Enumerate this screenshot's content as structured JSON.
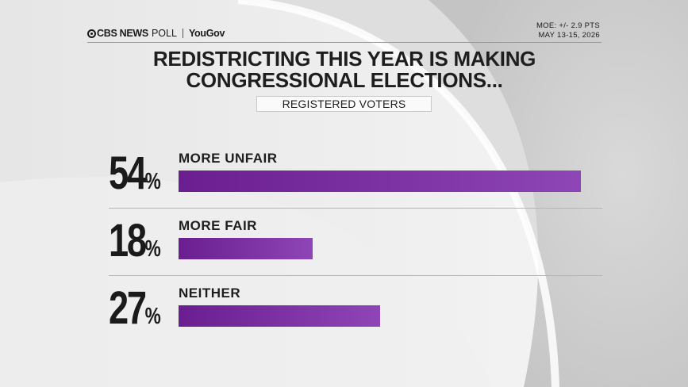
{
  "header": {
    "brand": "CBS NEWS",
    "poll": "POLL",
    "partner": "YouGov",
    "moe": "MOE: +/- 2.9 PTS",
    "dates": "MAY 13-15, 2026"
  },
  "title_line1": "REDISTRICTING THIS YEAR IS MAKING",
  "title_line2": "CONGRESSIONAL ELECTIONS...",
  "subtitle": "REGISTERED VOTERS",
  "colors": {
    "bar_start": "#6a1e90",
    "bar_end": "#8e45b6",
    "text": "#1e1e1e"
  },
  "chart_data": {
    "type": "bar",
    "orientation": "horizontal",
    "title": "REDISTRICTING THIS YEAR IS MAKING CONGRESSIONAL ELECTIONS...",
    "subtitle": "REGISTERED VOTERS",
    "categories": [
      "MORE UNFAIR",
      "MORE FAIR",
      "NEITHER"
    ],
    "values": [
      54,
      18,
      27
    ],
    "value_labels": [
      "54",
      "18",
      "27"
    ],
    "unit": "%",
    "xlim": [
      0,
      54
    ]
  }
}
